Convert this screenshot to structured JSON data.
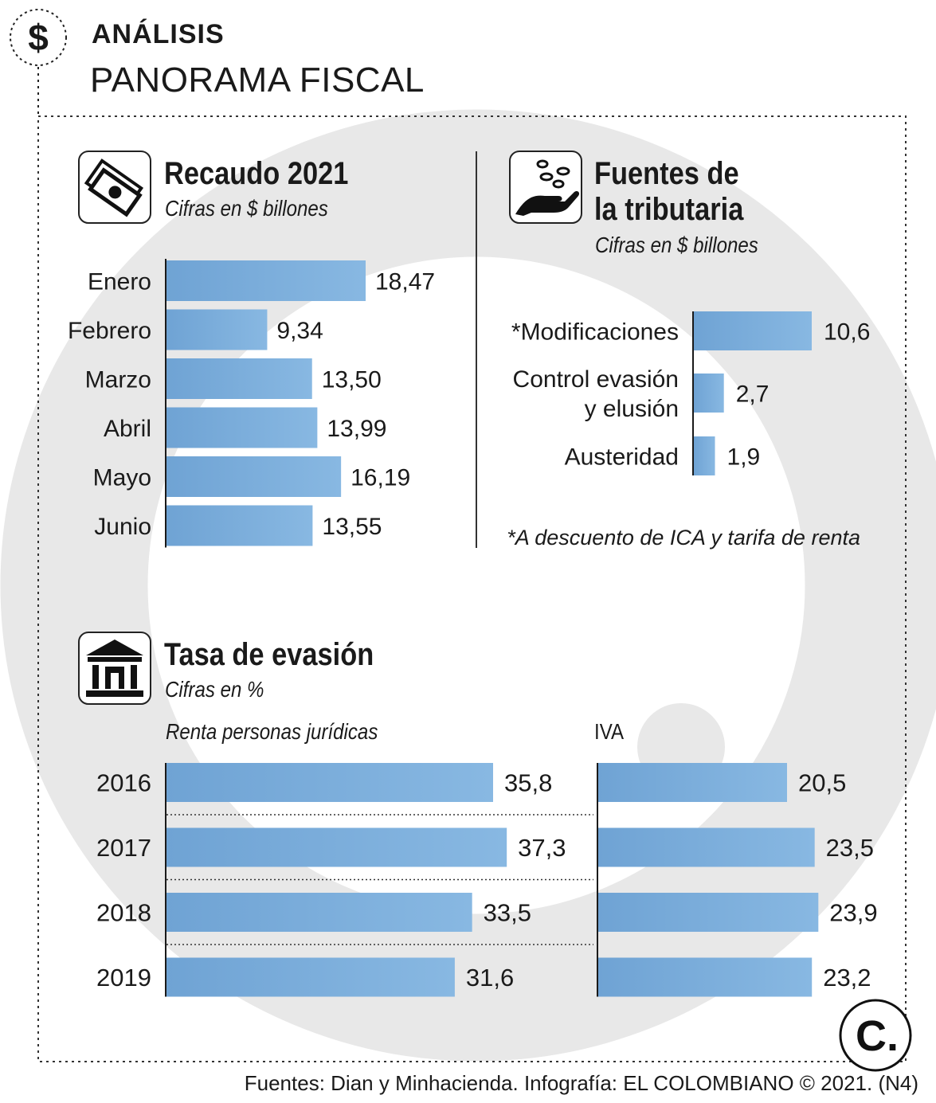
{
  "header": {
    "title": "ANÁLISIS",
    "subtitle": "PANORAMA FISCAL"
  },
  "source": "Fuentes: Dian y Minhacienda. Infografía: EL COLOMBIANO © 2021. (N4)",
  "logo_text": "C.",
  "colors": {
    "bar": "#88b8e2",
    "bar_dark": "#6fa3d4",
    "text": "#1a1a1a",
    "watermark": "#e6e6e6"
  },
  "chart_data": [
    {
      "type": "bar",
      "orientation": "horizontal",
      "title": "Recaudo 2021",
      "subtitle": "Cifras en $ billones",
      "icon": "money-icon",
      "categories": [
        "Enero",
        "Febrero",
        "Marzo",
        "Abril",
        "Mayo",
        "Junio"
      ],
      "values": [
        18.47,
        9.34,
        13.5,
        13.99,
        16.19,
        13.55
      ],
      "labels": [
        "18,47",
        "9,34",
        "13,50",
        "13,99",
        "16,19",
        "13,55"
      ],
      "xlim": [
        0,
        20
      ]
    },
    {
      "type": "bar",
      "orientation": "horizontal",
      "title": "Fuentes de la tributaria",
      "title_lines": [
        "Fuentes de",
        "la tributaria"
      ],
      "subtitle": "Cifras en $ billones",
      "icon": "coins-hand-icon",
      "categories": [
        "*Modificaciones",
        "Control evasión y elusión",
        "Austeridad"
      ],
      "category_lines": [
        [
          "*Modificaciones"
        ],
        [
          "Control evasión",
          "y elusión"
        ],
        [
          "Austeridad"
        ]
      ],
      "values": [
        10.6,
        2.7,
        1.9
      ],
      "labels": [
        "10,6",
        "2,7",
        "1,9"
      ],
      "note": "*A descuento de ICA y tarifa de renta",
      "xlim": [
        0,
        12
      ]
    },
    {
      "type": "bar",
      "orientation": "horizontal",
      "title": "Tasa de evasión",
      "subtitle": "Cifras en %",
      "icon": "bank-icon",
      "categories": [
        "2016",
        "2017",
        "2018",
        "2019"
      ],
      "series": [
        {
          "name": "Renta personas jurídicas",
          "values": [
            35.8,
            37.3,
            33.5,
            31.6
          ],
          "labels": [
            "35,8",
            "37,3",
            "33,5",
            "31,6"
          ]
        },
        {
          "name": "IVA",
          "values": [
            20.5,
            23.5,
            23.9,
            23.2
          ],
          "labels": [
            "20,5",
            "23,5",
            "23,9",
            "23,2"
          ]
        }
      ]
    }
  ]
}
